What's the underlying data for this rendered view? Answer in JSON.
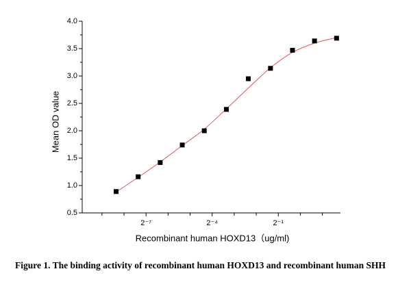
{
  "chart_data": {
    "type": "scatter",
    "x_label": "Recombinant human HOXD13（ug/ml)",
    "y_label": "Mean OD value",
    "caption": "Figure 1. The binding activity of recombinant human HOXD13 and recombinant human SHH",
    "xscale": "log2",
    "xlim": [
      0.00105,
      3.53
    ],
    "xticks": [
      {
        "value": 0.0078125,
        "label": "2⁻⁷"
      },
      {
        "value": 0.0625,
        "label": "2⁻⁴"
      },
      {
        "value": 0.5,
        "label": "2⁻¹"
      }
    ],
    "xminorticks": [
      0.001953125,
      0.00390625,
      0.015625,
      0.03125,
      0.125,
      0.25,
      1,
      2
    ],
    "ylim": [
      0.5,
      4.0
    ],
    "yticks": [
      0.5,
      {
        "value": 1.0,
        "label": "1.0"
      },
      1.5,
      {
        "value": 2.0,
        "label": "2.0"
      },
      2.5,
      {
        "value": 3.0,
        "label": "3.0"
      },
      3.5,
      {
        "value": 4.0,
        "label": "4.0"
      }
    ],
    "yminorticks": [
      0.75,
      1.25,
      1.75,
      2.25,
      2.75,
      3.25,
      3.75
    ],
    "x": [
      0.00305,
      0.0061,
      0.0122,
      0.0244,
      0.0488,
      0.0977,
      0.195,
      0.391,
      0.781,
      1.5625,
      3.125
    ],
    "series": [
      {
        "name": "Mean OD",
        "color": "#000000",
        "values": [
          0.89,
          1.16,
          1.42,
          1.74,
          2.0,
          2.39,
          2.95,
          3.14,
          3.47,
          3.64,
          3.69
        ]
      },
      {
        "name": "Fit",
        "color": "#e05555",
        "line": true,
        "values": [
          0.88,
          1.15,
          1.43,
          1.73,
          2.03,
          2.4,
          2.78,
          3.15,
          3.43,
          3.6,
          3.7
        ]
      }
    ]
  }
}
